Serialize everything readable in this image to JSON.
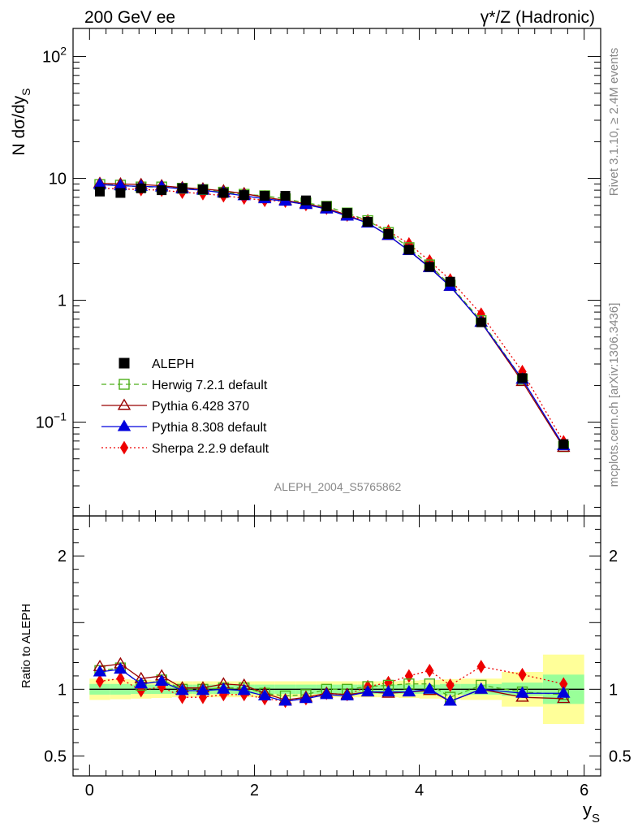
{
  "header": {
    "left": "200 GeV ee",
    "right": "γ*/Z (Hadronic)"
  },
  "side": {
    "rivet": "Rivet 3.1.10, ≥ 2.4M events",
    "mcplots": "mcplots.cern.ch [arXiv:1306.3436]"
  },
  "analysis_id": "ALEPH_2004_S5765862",
  "colors": {
    "data": "#000000",
    "herwig": "#4daf1a",
    "pythia6": "#990000",
    "pythia8": "#0000dd",
    "sherpa": "#ee0000",
    "band_inner": "#99ff99",
    "band_outer": "#ffff99"
  },
  "chart_data": [
    {
      "type": "scatter",
      "panel": "main",
      "ylabel": "N dσ/dy",
      "ylabel_sub": "S",
      "yscale": "log",
      "xlim": [
        -0.2,
        6.2
      ],
      "ylim": [
        0.017,
        170
      ],
      "yticks": [
        {
          "value": 0.1,
          "base": "10",
          "exp": "−1"
        },
        {
          "value": 1,
          "base": "1",
          "exp": ""
        },
        {
          "value": 10,
          "base": "10",
          "exp": ""
        },
        {
          "value": 100,
          "base": "10",
          "exp": "2"
        }
      ],
      "x": [
        0.125,
        0.375,
        0.625,
        0.875,
        1.125,
        1.375,
        1.625,
        1.875,
        2.125,
        2.375,
        2.625,
        2.875,
        3.125,
        3.375,
        3.625,
        3.875,
        4.125,
        4.375,
        4.75,
        5.25,
        5.75
      ],
      "legend_position": "left-middle",
      "series": [
        {
          "name": "ALEPH",
          "key": "data",
          "marker": "square",
          "line": "none",
          "values": [
            7.8,
            7.6,
            8.3,
            8.0,
            8.3,
            8.1,
            7.6,
            7.3,
            7.2,
            7.2,
            6.6,
            5.9,
            5.2,
            4.4,
            3.5,
            2.6,
            1.88,
            1.42,
            0.66,
            0.23,
            0.066
          ]
        },
        {
          "name": "Herwig 7.2.1 default",
          "key": "herwig",
          "marker": "open-square",
          "line": "dashed",
          "values": [
            8.9,
            8.8,
            8.5,
            8.5,
            8.3,
            8.1,
            7.7,
            7.4,
            7.2,
            6.8,
            6.3,
            5.9,
            5.2,
            4.5,
            3.6,
            2.7,
            1.95,
            1.33,
            0.68,
            0.225,
            0.063
          ]
        },
        {
          "name": "Pythia 6.428 370",
          "key": "pythia6",
          "marker": "open-triangle",
          "line": "solid",
          "values": [
            9.1,
            9.0,
            8.9,
            8.7,
            8.4,
            8.2,
            7.9,
            7.5,
            7.0,
            6.6,
            6.2,
            5.7,
            5.0,
            4.3,
            3.4,
            2.55,
            1.87,
            1.3,
            0.66,
            0.215,
            0.062
          ]
        },
        {
          "name": "Pythia 8.308 default",
          "key": "pythia8",
          "marker": "filled-triangle",
          "line": "solid",
          "values": [
            8.9,
            8.7,
            8.6,
            8.5,
            8.2,
            8.0,
            7.6,
            7.2,
            6.8,
            6.5,
            6.1,
            5.6,
            4.9,
            4.3,
            3.4,
            2.55,
            1.85,
            1.3,
            0.66,
            0.225,
            0.064
          ]
        },
        {
          "name": "Sherpa 2.2.9 default",
          "key": "sherpa",
          "marker": "diamond",
          "line": "dotted",
          "values": [
            8.3,
            8.2,
            8.1,
            8.0,
            7.7,
            7.5,
            7.2,
            6.9,
            6.6,
            6.5,
            6.1,
            5.7,
            5.0,
            4.5,
            3.7,
            2.9,
            2.1,
            1.47,
            0.77,
            0.26,
            0.069
          ]
        }
      ]
    },
    {
      "type": "line",
      "panel": "ratio",
      "ylabel": "Ratio to ALEPH",
      "xlabel": "y",
      "xlabel_sub": "S",
      "xlim": [
        -0.2,
        6.2
      ],
      "ylim": [
        0.35,
        2.3
      ],
      "xticks": [
        0,
        2,
        4,
        6
      ],
      "yticks": [
        {
          "value": 0.5,
          "label": "0.5"
        },
        {
          "value": 1,
          "label": "1"
        },
        {
          "value": 2,
          "label": "2"
        }
      ],
      "bins": [
        [
          0,
          0.25
        ],
        [
          0.25,
          0.5
        ],
        [
          0.5,
          0.75
        ],
        [
          0.75,
          1.0
        ],
        [
          1.0,
          1.25
        ],
        [
          1.25,
          1.5
        ],
        [
          1.5,
          1.75
        ],
        [
          1.75,
          2.0
        ],
        [
          2.0,
          2.25
        ],
        [
          2.25,
          2.5
        ],
        [
          2.5,
          2.75
        ],
        [
          2.75,
          3.0
        ],
        [
          3.0,
          3.25
        ],
        [
          3.25,
          3.5
        ],
        [
          3.5,
          3.75
        ],
        [
          3.75,
          4.0
        ],
        [
          4.0,
          4.25
        ],
        [
          4.25,
          4.5
        ],
        [
          4.5,
          5.0
        ],
        [
          5.0,
          5.5
        ],
        [
          5.5,
          6.0
        ]
      ],
      "band_inner": [
        0.04,
        0.04,
        0.035,
        0.035,
        0.035,
        0.035,
        0.035,
        0.035,
        0.035,
        0.035,
        0.035,
        0.035,
        0.035,
        0.035,
        0.035,
        0.035,
        0.035,
        0.04,
        0.04,
        0.05,
        0.11
      ],
      "band_outer": [
        0.08,
        0.075,
        0.07,
        0.065,
        0.06,
        0.06,
        0.06,
        0.06,
        0.06,
        0.06,
        0.06,
        0.06,
        0.06,
        0.06,
        0.06,
        0.065,
        0.07,
        0.075,
        0.08,
        0.13,
        0.26
      ],
      "series": [
        {
          "key": "herwig",
          "values": [
            1.14,
            1.16,
            1.03,
            1.07,
            1.0,
            1.0,
            1.01,
            1.01,
            0.97,
            0.95,
            0.96,
            1.0,
            1.0,
            1.02,
            1.03,
            1.04,
            1.04,
            0.94,
            1.03,
            0.98,
            0.96
          ]
        },
        {
          "key": "pythia6",
          "values": [
            1.17,
            1.19,
            1.08,
            1.1,
            1.01,
            1.01,
            1.04,
            1.03,
            0.97,
            0.92,
            0.94,
            0.97,
            0.96,
            0.98,
            0.97,
            0.98,
            0.99,
            0.91,
            1.0,
            0.94,
            0.93
          ]
        },
        {
          "key": "pythia8",
          "values": [
            1.13,
            1.15,
            1.04,
            1.06,
            0.99,
            0.99,
            1.0,
            0.99,
            0.95,
            0.91,
            0.93,
            0.96,
            0.95,
            0.98,
            0.98,
            0.98,
            1.0,
            0.91,
            1.0,
            0.97,
            0.97
          ]
        },
        {
          "key": "sherpa",
          "values": [
            1.06,
            1.08,
            0.99,
            1.02,
            0.94,
            0.94,
            0.96,
            0.96,
            0.93,
            0.91,
            0.93,
            0.97,
            0.96,
            1.02,
            1.05,
            1.1,
            1.14,
            1.03,
            1.17,
            1.11,
            1.04
          ]
        }
      ]
    }
  ]
}
